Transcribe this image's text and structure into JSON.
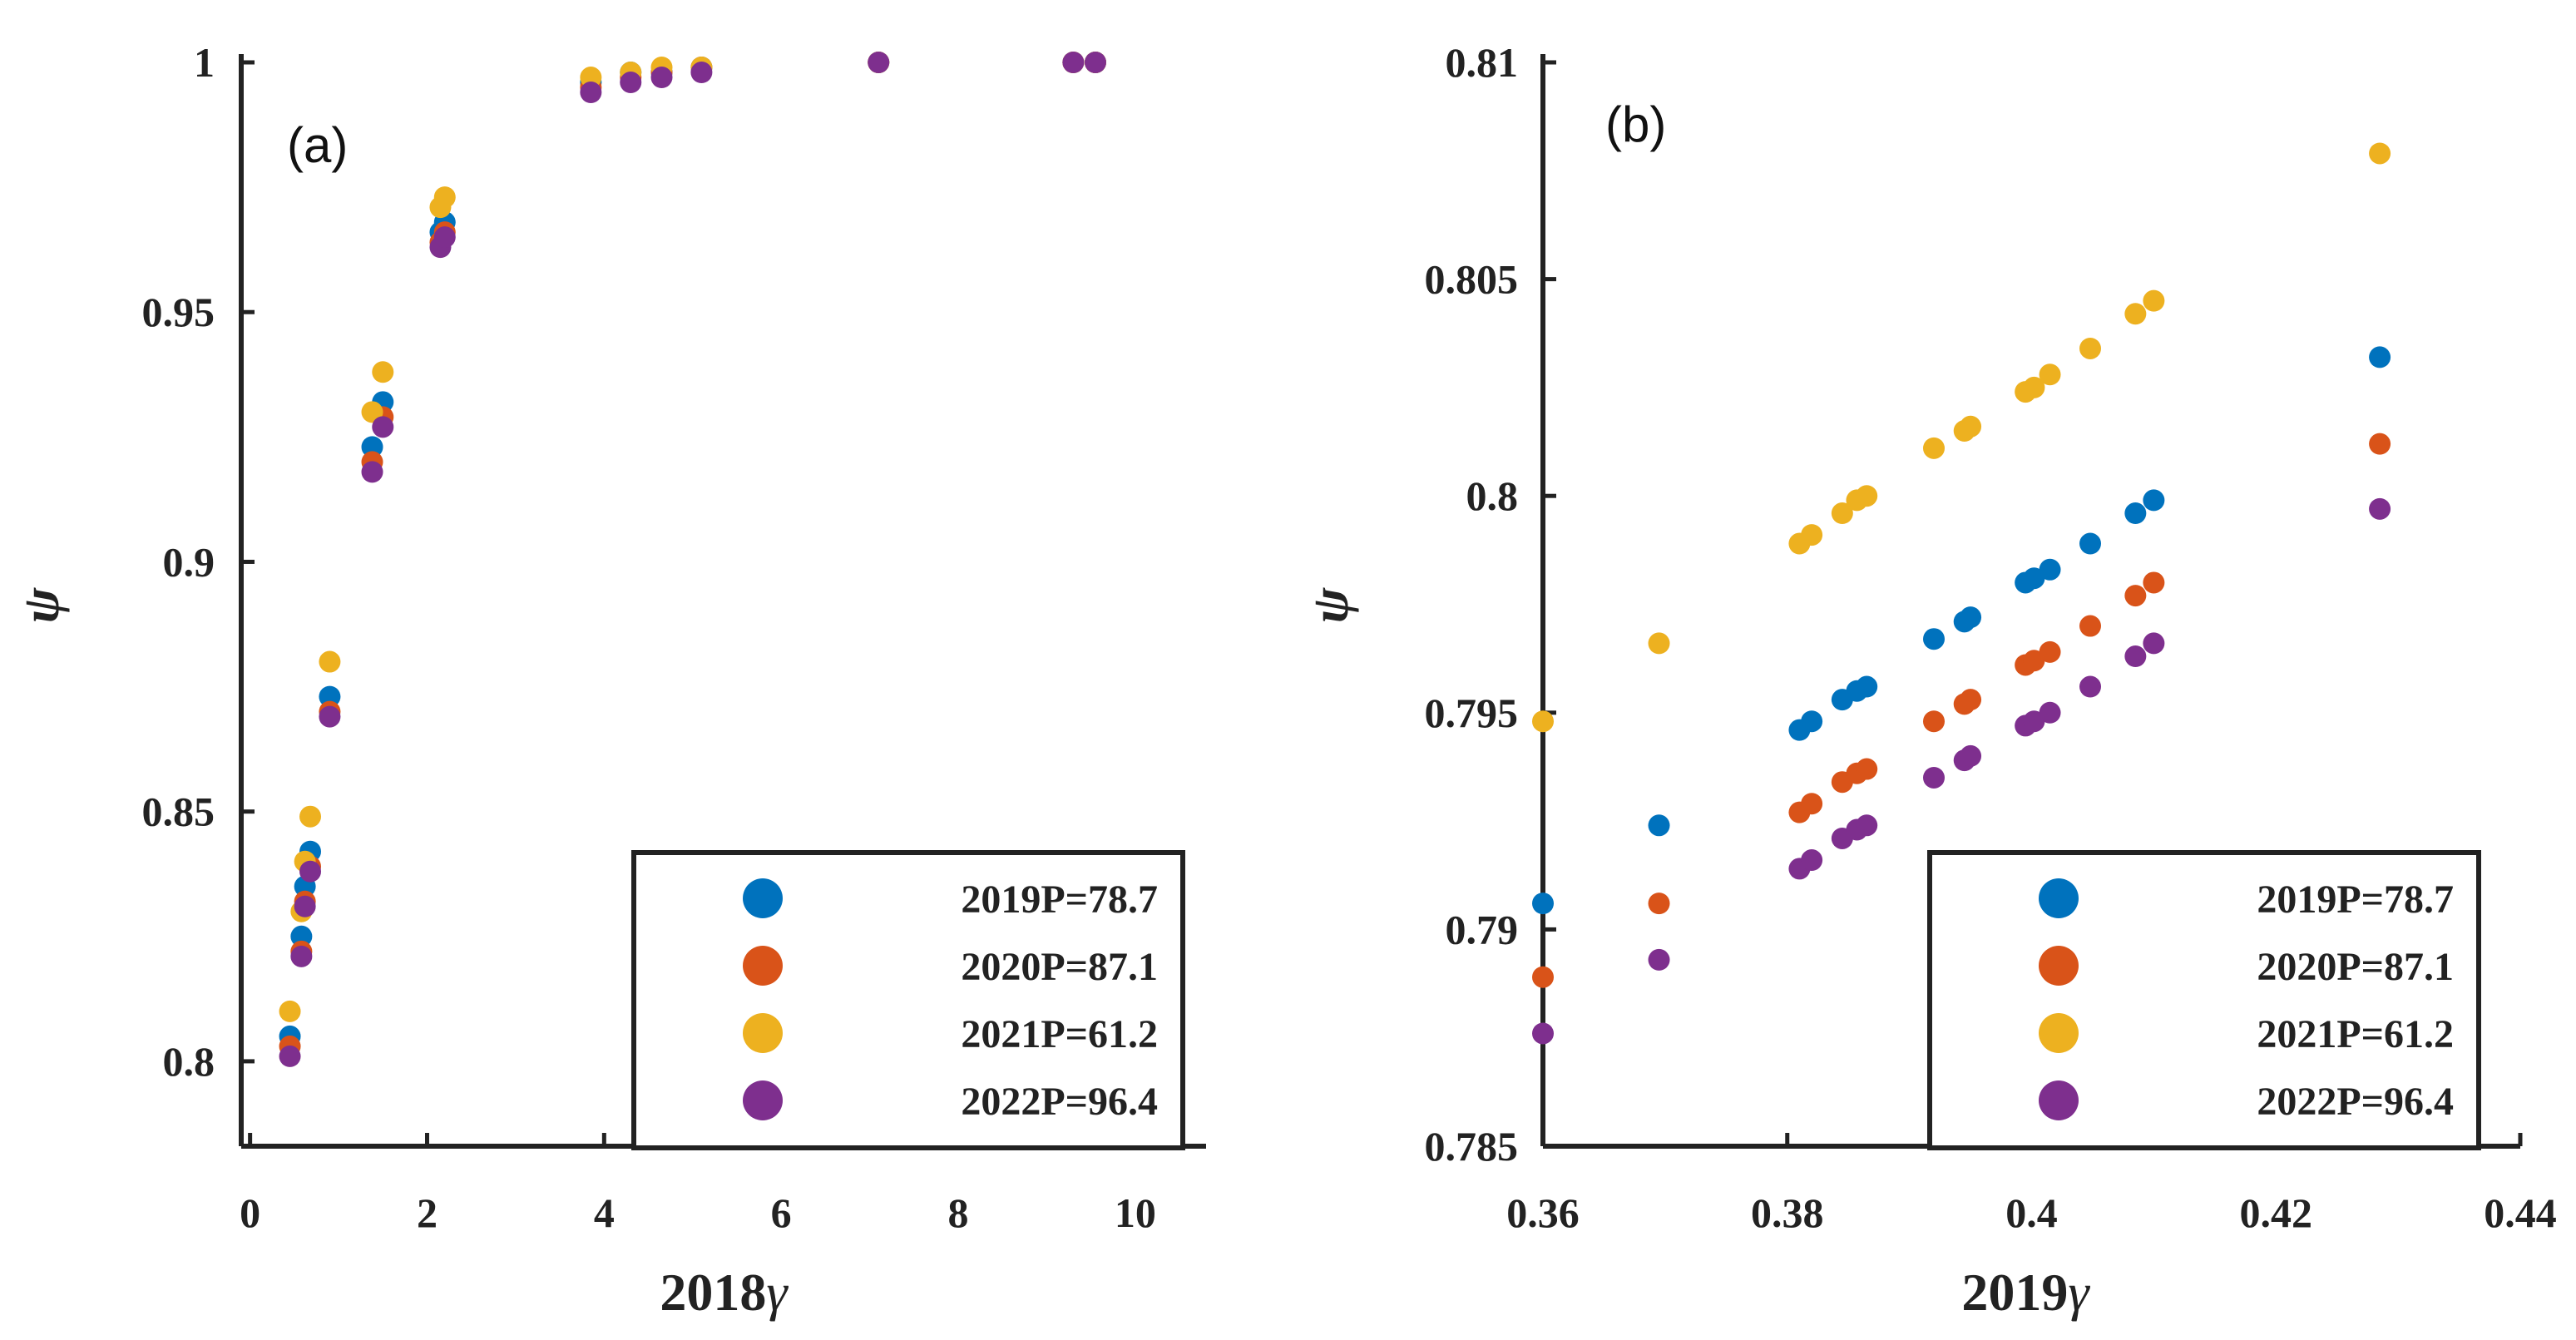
{
  "chart_data": [
    {
      "type": "scatter",
      "panel_label": "(a)",
      "xlabel_prefix": "2018",
      "xlabel_symbol": "γ",
      "ylabel": "ψ",
      "xlim": [
        -0.1,
        10.8
      ],
      "ylim": [
        0.783,
        1.0
      ],
      "xticks": [
        0,
        2,
        4,
        6,
        8,
        10
      ],
      "xtick_labels": [
        "0",
        "2",
        "4",
        "6",
        "8",
        "10"
      ],
      "yticks": [
        0.8,
        0.85,
        0.9,
        0.95,
        1.0
      ],
      "ytick_labels": [
        "0.8",
        "0.85",
        "0.9",
        "0.95",
        "1"
      ],
      "legend_position": "bottom-right",
      "series": [
        {
          "name": "2019P=78.7",
          "color": "#0072BD",
          "x": [
            0.45,
            0.58,
            0.62,
            0.68,
            0.9,
            1.38,
            1.5,
            2.15,
            2.2,
            3.85,
            4.3,
            4.65,
            5.1,
            7.1,
            9.3,
            9.55
          ],
          "y": [
            0.805,
            0.825,
            0.835,
            0.842,
            0.873,
            0.923,
            0.932,
            0.966,
            0.968,
            0.996,
            0.998,
            0.998,
            0.999,
            1.0,
            1.0,
            1.0
          ]
        },
        {
          "name": "2020P=87.1",
          "color": "#D95319",
          "x": [
            0.45,
            0.58,
            0.62,
            0.68,
            0.9,
            1.38,
            1.5,
            2.15,
            2.2,
            3.85,
            4.3,
            4.65,
            5.1,
            7.1,
            9.3,
            9.55
          ],
          "y": [
            0.803,
            0.822,
            0.832,
            0.839,
            0.87,
            0.92,
            0.929,
            0.964,
            0.966,
            0.995,
            0.997,
            0.998,
            0.999,
            1.0,
            1.0,
            1.0
          ]
        },
        {
          "name": "2021P=61.2",
          "color": "#EDB120",
          "x": [
            0.45,
            0.58,
            0.62,
            0.68,
            0.9,
            1.38,
            1.5,
            2.15,
            2.2,
            3.85,
            4.3,
            4.65,
            5.1,
            7.1,
            9.3,
            9.55
          ],
          "y": [
            0.81,
            0.83,
            0.84,
            0.849,
            0.88,
            0.93,
            0.938,
            0.971,
            0.973,
            0.997,
            0.998,
            0.999,
            0.999,
            1.0,
            1.0,
            1.0
          ]
        },
        {
          "name": "2022P=96.4",
          "color": "#7E2F8E",
          "x": [
            0.45,
            0.58,
            0.62,
            0.68,
            0.9,
            1.38,
            1.5,
            2.15,
            2.2,
            3.85,
            4.3,
            4.65,
            5.1,
            7.1,
            9.3,
            9.55
          ],
          "y": [
            0.801,
            0.821,
            0.831,
            0.838,
            0.869,
            0.918,
            0.927,
            0.963,
            0.965,
            0.994,
            0.996,
            0.997,
            0.998,
            1.0,
            1.0,
            1.0
          ]
        }
      ]
    },
    {
      "type": "scatter",
      "panel_label": "(b)",
      "xlabel_prefix": "2019",
      "xlabel_symbol": "γ",
      "ylabel": "ψ",
      "xlim": [
        0.36,
        0.44
      ],
      "ylim": [
        0.785,
        0.81
      ],
      "xticks": [
        0.36,
        0.38,
        0.4,
        0.42,
        0.44
      ],
      "xtick_labels": [
        "0.36",
        "0.38",
        "0.4",
        "0.42",
        "0.44"
      ],
      "yticks": [
        0.785,
        0.79,
        0.795,
        0.8,
        0.805,
        0.81
      ],
      "ytick_labels": [
        "0.785",
        "0.79",
        "0.795",
        "0.8",
        "0.805",
        "0.81"
      ],
      "legend_position": "bottom-right",
      "series": [
        {
          "name": "2019P=78.7",
          "color": "#0072BD",
          "x": [
            0.36,
            0.3695,
            0.381,
            0.382,
            0.3845,
            0.3857,
            0.3865,
            0.392,
            0.3945,
            0.395,
            0.3995,
            0.4002,
            0.4015,
            0.4048,
            0.4085,
            0.41,
            0.4285
          ],
          "y": [
            0.7906,
            0.7924,
            0.7946,
            0.7948,
            0.7953,
            0.7955,
            0.7956,
            0.7967,
            0.7971,
            0.7972,
            0.798,
            0.7981,
            0.7983,
            0.7989,
            0.7996,
            0.7999,
            0.8032
          ]
        },
        {
          "name": "2020P=87.1",
          "color": "#D95319",
          "x": [
            0.36,
            0.3695,
            0.381,
            0.382,
            0.3845,
            0.3857,
            0.3865,
            0.392,
            0.3945,
            0.395,
            0.3995,
            0.4002,
            0.4015,
            0.4048,
            0.4085,
            0.41,
            0.4285
          ],
          "y": [
            0.7889,
            0.7906,
            0.7927,
            0.7929,
            0.7934,
            0.7936,
            0.7937,
            0.7948,
            0.7952,
            0.7953,
            0.7961,
            0.7962,
            0.7964,
            0.797,
            0.7977,
            0.798,
            0.8012
          ]
        },
        {
          "name": "2021P=61.2",
          "color": "#EDB120",
          "x": [
            0.36,
            0.3695,
            0.381,
            0.382,
            0.3845,
            0.3857,
            0.3865,
            0.392,
            0.3945,
            0.395,
            0.3995,
            0.4002,
            0.4015,
            0.4048,
            0.4085,
            0.41,
            0.4285
          ],
          "y": [
            0.7948,
            0.7966,
            0.7989,
            0.7991,
            0.7996,
            0.7999,
            0.8,
            0.8011,
            0.8015,
            0.8016,
            0.8024,
            0.8025,
            0.8028,
            0.8034,
            0.8042,
            0.8045,
            0.8079
          ]
        },
        {
          "name": "2022P=96.4",
          "color": "#7E2F8E",
          "x": [
            0.36,
            0.3695,
            0.381,
            0.382,
            0.3845,
            0.3857,
            0.3865,
            0.392,
            0.3945,
            0.395,
            0.3995,
            0.4002,
            0.4015,
            0.4048,
            0.4085,
            0.41,
            0.4285
          ],
          "y": [
            0.7876,
            0.7893,
            0.7914,
            0.7916,
            0.7921,
            0.7923,
            0.7924,
            0.7935,
            0.7939,
            0.794,
            0.7947,
            0.7948,
            0.795,
            0.7956,
            0.7963,
            0.7966,
            0.7997
          ]
        }
      ]
    }
  ]
}
